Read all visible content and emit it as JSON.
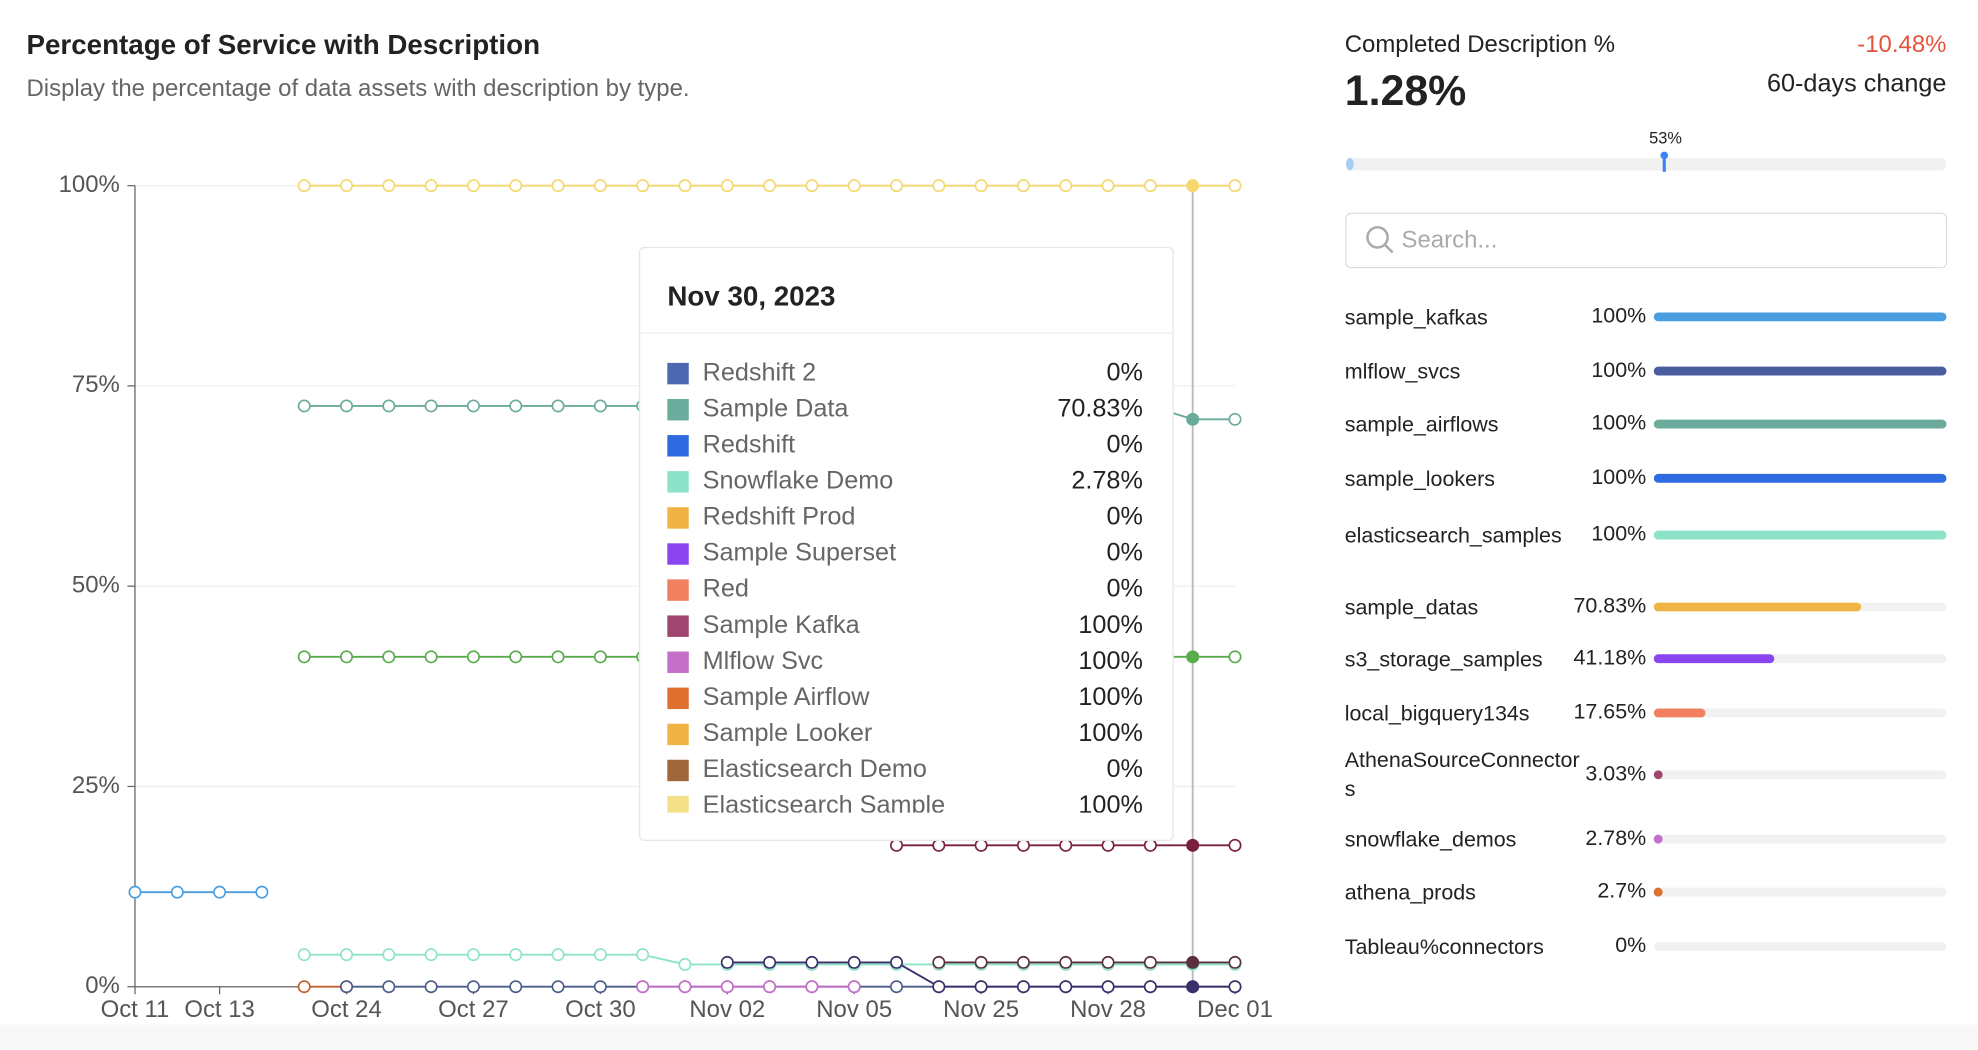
{
  "chart_data": {
    "type": "line",
    "title": "Percentage of Service with Description",
    "subtitle": "Display the percentage of data assets with description by type.",
    "categories": [
      "Oct 11",
      null,
      "Oct 13",
      null,
      null,
      "Oct 24",
      null,
      null,
      "Oct 27",
      null,
      null,
      "Oct 30",
      null,
      null,
      "Nov 02",
      null,
      null,
      "Nov 05",
      null,
      null,
      "Nov 25",
      null,
      null,
      "Nov 28",
      null,
      null,
      "Dec 01"
    ],
    "ylim": [
      0,
      100
    ],
    "yticks": [
      {
        "value": 0,
        "label": "0%"
      },
      {
        "value": 25,
        "label": "25%"
      },
      {
        "value": 50,
        "label": "50%"
      },
      {
        "value": 75,
        "label": "75%"
      },
      {
        "value": 100,
        "label": "100%"
      }
    ],
    "grid": true,
    "series": [
      {
        "color": "#4a9ee0",
        "values": [
          11.8,
          11.8,
          11.8,
          11.8,
          null,
          null,
          null,
          null,
          null,
          null,
          null,
          null,
          null,
          null,
          null,
          null,
          null,
          null,
          null,
          null,
          null,
          null,
          null,
          null,
          null,
          null,
          null
        ]
      },
      {
        "color": "#f5d76e",
        "values": [
          null,
          null,
          null,
          null,
          100,
          100,
          100,
          100,
          100,
          100,
          100,
          100,
          100,
          100,
          100,
          100,
          100,
          100,
          100,
          100,
          100,
          100,
          100,
          100,
          100,
          100,
          100
        ]
      },
      {
        "color": "#6aab9c",
        "values": [
          null,
          null,
          null,
          null,
          72.5,
          72.5,
          72.5,
          72.5,
          72.5,
          72.5,
          72.5,
          72.5,
          72.5,
          72.5,
          72.5,
          72.5,
          72.5,
          72.5,
          72.5,
          72.5,
          72.5,
          72.5,
          72.5,
          72.5,
          72.5,
          70.83,
          70.83
        ]
      },
      {
        "color": "#5aaa4e",
        "values": [
          null,
          null,
          null,
          null,
          41.18,
          41.18,
          41.18,
          41.18,
          41.18,
          41.18,
          41.18,
          41.18,
          41.18,
          41.18,
          41.18,
          41.18,
          41.18,
          41.18,
          41.18,
          41.18,
          41.18,
          41.18,
          41.18,
          41.18,
          41.18,
          41.18,
          41.18
        ]
      },
      {
        "color": "#7a1f3d",
        "values": [
          null,
          null,
          null,
          null,
          null,
          null,
          null,
          null,
          null,
          null,
          null,
          null,
          null,
          null,
          null,
          null,
          null,
          null,
          17.65,
          17.65,
          17.65,
          17.65,
          17.65,
          17.65,
          17.65,
          17.65,
          17.65
        ]
      },
      {
        "color": "#8de3c9",
        "values": [
          null,
          null,
          null,
          null,
          4,
          4,
          4,
          4,
          4,
          4,
          4,
          4,
          4,
          2.78,
          2.78,
          2.78,
          2.78,
          2.78,
          2.78,
          2.78,
          2.78,
          2.78,
          2.78,
          2.78,
          2.78,
          2.78,
          2.78
        ]
      },
      {
        "color": "#c0602a",
        "values": [
          null,
          null,
          null,
          null,
          0,
          0,
          null,
          null,
          null,
          null,
          null,
          null,
          null,
          null,
          null,
          null,
          null,
          null,
          null,
          null,
          null,
          null,
          null,
          null,
          null,
          null,
          null
        ]
      },
      {
        "color": "#4b5c8a",
        "values": [
          null,
          null,
          null,
          null,
          null,
          0,
          0,
          0,
          0,
          0,
          0,
          0,
          0,
          0,
          0,
          0,
          0,
          0,
          0,
          0,
          0,
          0,
          0,
          0,
          0,
          0,
          0
        ]
      },
      {
        "color": "#c46fc8",
        "values": [
          null,
          null,
          null,
          null,
          null,
          null,
          null,
          null,
          null,
          null,
          null,
          null,
          0,
          0,
          0,
          0,
          0,
          0,
          null,
          null,
          null,
          null,
          null,
          null,
          null,
          null,
          null
        ]
      },
      {
        "color": "#3b2f6b",
        "values": [
          null,
          null,
          null,
          null,
          null,
          null,
          null,
          null,
          null,
          null,
          null,
          null,
          null,
          null,
          3.03,
          3.03,
          3.03,
          3.03,
          3.03,
          0,
          0,
          0,
          0,
          0,
          0,
          0,
          0
        ]
      },
      {
        "color": "#5a3040",
        "values": [
          null,
          null,
          null,
          null,
          null,
          null,
          null,
          null,
          null,
          null,
          null,
          null,
          null,
          null,
          null,
          null,
          null,
          null,
          null,
          3.03,
          3.03,
          3.03,
          3.03,
          3.03,
          3.03,
          3.03,
          3.03
        ]
      }
    ]
  },
  "tooltip": {
    "title": "Nov 30, 2023",
    "rows": [
      {
        "name": "Redshift 2",
        "value": "0%",
        "color": "#4b68b0"
      },
      {
        "name": "Sample Data",
        "value": "70.83%",
        "color": "#6aab9c"
      },
      {
        "name": "Redshift",
        "value": "0%",
        "color": "#2f6be0"
      },
      {
        "name": "Snowflake Demo",
        "value": "2.78%",
        "color": "#8de3c9"
      },
      {
        "name": "Redshift Prod",
        "value": "0%",
        "color": "#f0b445"
      },
      {
        "name": "Sample Superset",
        "value": "0%",
        "color": "#8b45f0"
      },
      {
        "name": "Red",
        "value": "0%",
        "color": "#f08060"
      },
      {
        "name": "Sample Kafka",
        "value": "100%",
        "color": "#a0456e"
      },
      {
        "name": "Mlflow Svc",
        "value": "100%",
        "color": "#c46fc8"
      },
      {
        "name": "Sample Airflow",
        "value": "100%",
        "color": "#e07030"
      },
      {
        "name": "Sample Looker",
        "value": "100%",
        "color": "#f0b445"
      },
      {
        "name": "Elasticsearch Demo",
        "value": "0%",
        "color": "#a0683a"
      },
      {
        "name": "Elasticsearch Sample",
        "value": "100%",
        "color": "#f5e08a"
      }
    ]
  },
  "summary": {
    "title": "Completed Description %",
    "current": {
      "value": 1.28,
      "label": "1.28%"
    },
    "change": "-10.48%",
    "change_label": "60-days change",
    "target": {
      "value": 53,
      "label": "53%"
    },
    "search_placeholder": "Search...",
    "items": [
      {
        "name": "sample_kafkas",
        "value": 100,
        "label": "100%",
        "color": "#4a9ee0"
      },
      {
        "name": "mlflow_svcs",
        "value": 100,
        "label": "100%",
        "color": "#4b5c9e"
      },
      {
        "name": "sample_airflows",
        "value": 100,
        "label": "100%",
        "color": "#6aab9c"
      },
      {
        "name": "sample_lookers",
        "value": 100,
        "label": "100%",
        "color": "#2f6be0"
      },
      {
        "name": "elasticsearch_samples",
        "value": 100,
        "label": "100%",
        "color": "#8de3c9"
      },
      {
        "name": "sample_datas",
        "value": 70.83,
        "label": "70.83%",
        "color": "#f0b445"
      },
      {
        "name": "s3_storage_samples",
        "value": 41.18,
        "label": "41.18%",
        "color": "#8b45f0"
      },
      {
        "name": "local_bigquery134s",
        "value": 17.65,
        "label": "17.65%",
        "color": "#f08060"
      },
      {
        "name": "AthenaSourceConnectors",
        "value": 3.03,
        "label": "3.03%",
        "color": "#a0456e"
      },
      {
        "name": "snowflake_demos",
        "value": 2.78,
        "label": "2.78%",
        "color": "#c46fc8"
      },
      {
        "name": "athena_prods",
        "value": 2.7,
        "label": "2.7%",
        "color": "#e07030"
      },
      {
        "name": "Tableau%connectors",
        "value": 0,
        "label": "0%",
        "color": "#999999"
      }
    ]
  }
}
